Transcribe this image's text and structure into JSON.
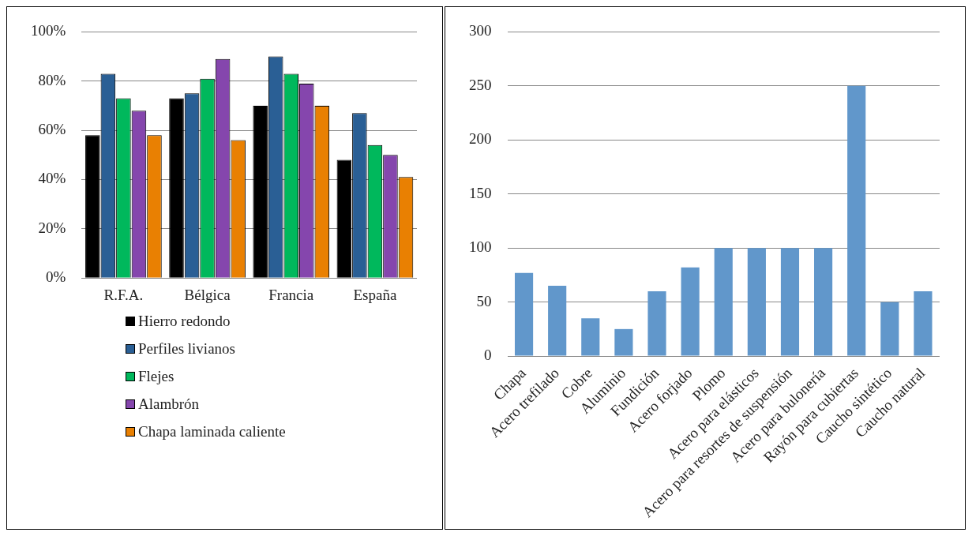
{
  "chart_data": [
    {
      "type": "bar",
      "categories": [
        "R.F.A.",
        "Bélgica",
        "Francia",
        "España"
      ],
      "series": [
        {
          "name": "Hierro redondo",
          "color": "#000000",
          "values": [
            58,
            73,
            70,
            48
          ]
        },
        {
          "name": "Perfiles livianos",
          "color": "#2a5f95",
          "values": [
            83,
            75,
            90,
            67
          ]
        },
        {
          "name": "Flejes",
          "color": "#00b85c",
          "values": [
            73,
            81,
            83,
            54
          ]
        },
        {
          "name": "Alambrón",
          "color": "#8546ad",
          "values": [
            68,
            89,
            79,
            50
          ]
        },
        {
          "name": "Chapa laminada caliente",
          "color": "#e98002",
          "values": [
            58,
            56,
            70,
            41
          ]
        }
      ],
      "ylim": [
        0,
        100
      ],
      "yticks": [
        {
          "value": 0,
          "label": "0%"
        },
        {
          "value": 20,
          "label": "20%"
        },
        {
          "value": 40,
          "label": "40%"
        },
        {
          "value": 60,
          "label": "60%"
        },
        {
          "value": 80,
          "label": "80%"
        },
        {
          "value": 100,
          "label": "100%"
        }
      ],
      "grid": "y",
      "legend": "bottom"
    },
    {
      "type": "bar",
      "categories": [
        "Chapa",
        "Acero trefilado",
        "Cobre",
        "Aluminio",
        "Fundición",
        "Acero forjado",
        "Plomo",
        "Acero para elásticos",
        "Acero para resortes de suspensión",
        "Acero para bulonería",
        "Rayón para cubiertas",
        "Caucho sintético",
        "Caucho natural"
      ],
      "values": [
        77,
        65,
        35,
        25,
        60,
        82,
        100,
        100,
        100,
        100,
        250,
        50,
        60
      ],
      "color": "#6197cb",
      "ylim": [
        0,
        300
      ],
      "yticks": [
        0,
        50,
        100,
        150,
        200,
        250,
        300
      ],
      "grid": "y"
    }
  ]
}
